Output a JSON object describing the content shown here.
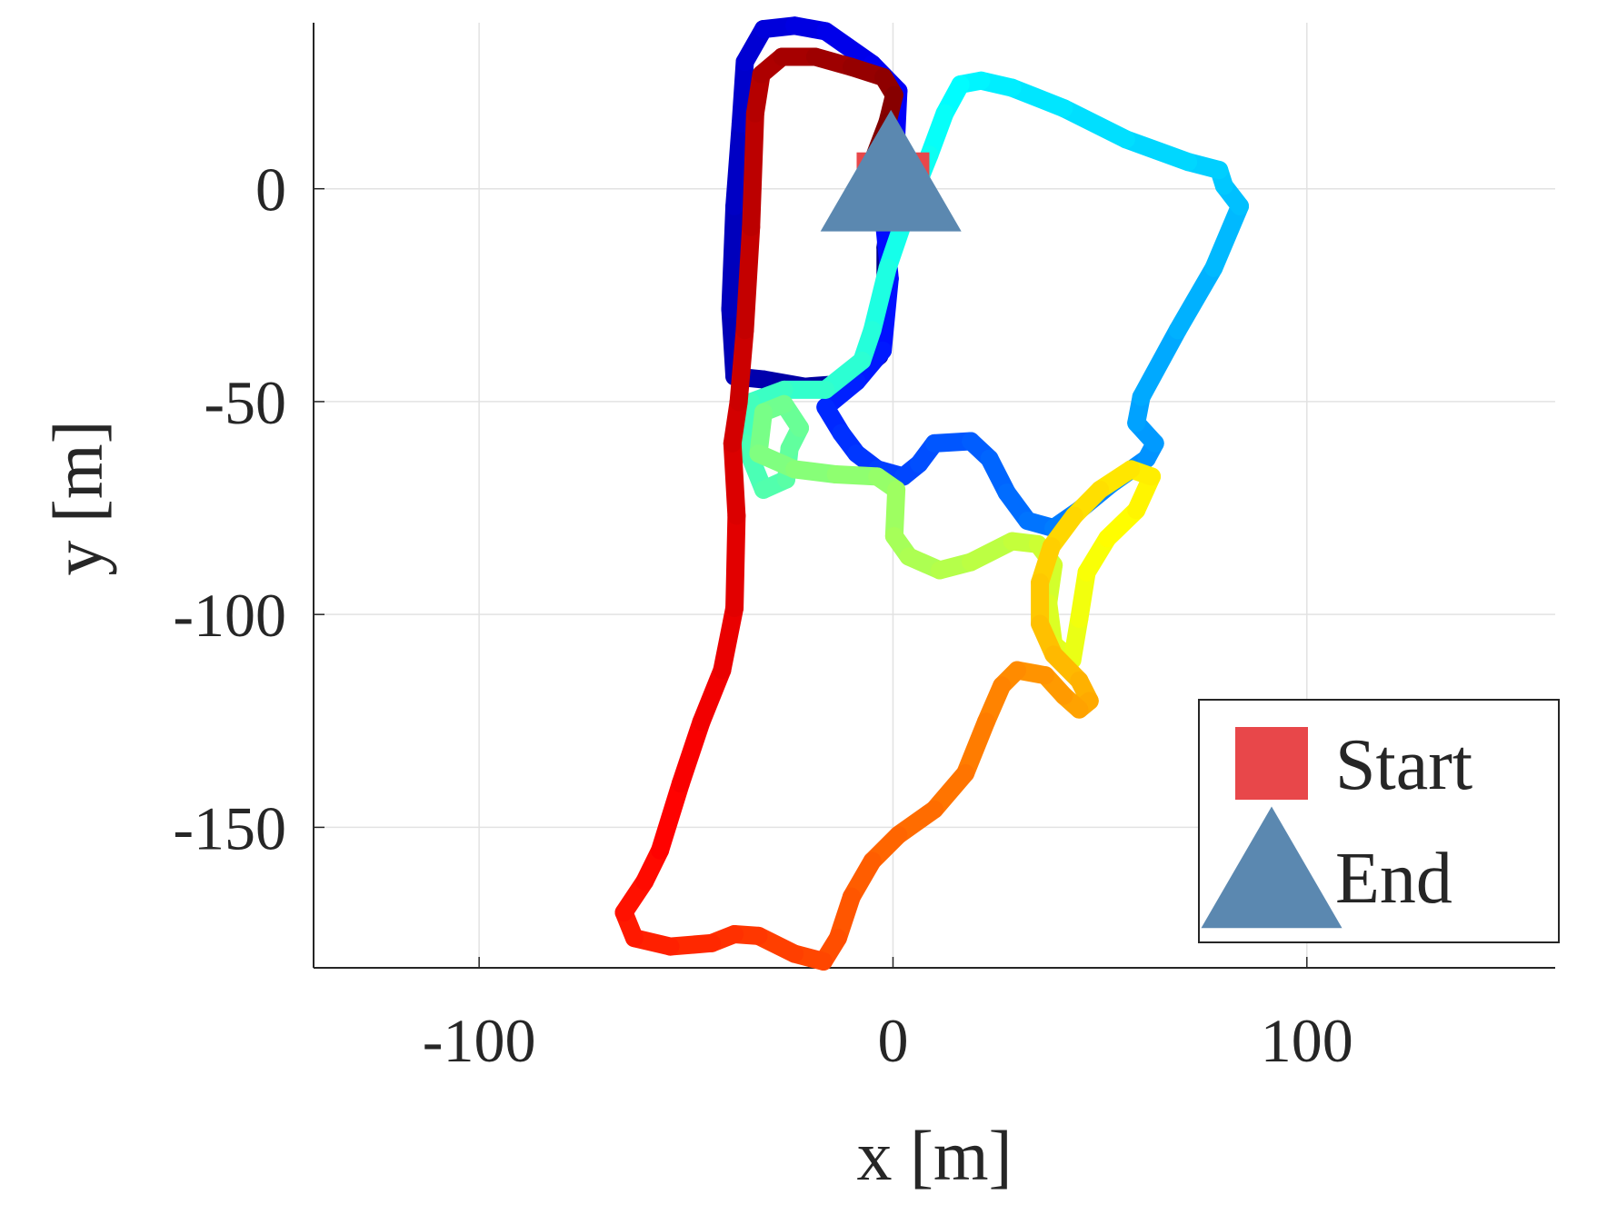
{
  "chart_data": {
    "type": "trajectory",
    "xlabel": "x [m]",
    "ylabel": "y [m]",
    "xlim": [
      -140,
      160
    ],
    "ylim": [
      -183,
      39
    ],
    "xticks": [
      -100,
      0,
      100
    ],
    "yticks": [
      -150,
      -100,
      -50,
      0
    ],
    "grid": true,
    "colormap": "jet",
    "legend_loc": "lower right",
    "x": [
      0,
      -1.8,
      -1.8,
      -3.3,
      -11.3,
      -21.3,
      -31.3,
      -38.3,
      -39.3,
      -38.3,
      -36.8,
      -35.8,
      -31.3,
      -23.8,
      -16.3,
      -5,
      1.3,
      0.8,
      -2.5,
      -0.8,
      -2.5,
      -8.8,
      -16.3,
      -12.5,
      -8.8,
      -3.8,
      2.5,
      6.3,
      10,
      18.8,
      23.3,
      27.5,
      32.5,
      38.8,
      45,
      52.5,
      61.3,
      63.3,
      58.8,
      60,
      68.8,
      77.5,
      83.8,
      80,
      78.8,
      71.3,
      56.3,
      41.3,
      28.8,
      21.3,
      16.3,
      12.5,
      8.8,
      3.8,
      -1.3,
      -5,
      -7.5,
      -16.3,
      -26.3,
      -34.3,
      -35.8,
      -31.3,
      -25.8,
      -25,
      -22.5,
      -26.3,
      -31.3,
      -32.5,
      -23.8,
      -13.8,
      -3.8,
      0.8,
      0.3,
      3.8,
      11.3,
      18.8,
      28.8,
      35,
      38.8,
      37.5,
      38.8,
      43.3,
      45,
      46.8,
      51.8,
      58.8,
      62.5,
      57.5,
      50,
      43.8,
      38.3,
      35.5,
      35.5,
      38.8,
      45,
      47.5,
      45,
      41.3,
      36.8,
      30,
      26.3,
      22.5,
      17.5,
      10,
      1.3,
      -5,
      -10,
      -13.3,
      -16.8,
      -23.8,
      -32.5,
      -38.3,
      -43.8,
      -53.8,
      -62.5,
      -65,
      -60,
      -56.3,
      -51.3,
      -46.3,
      -41.3,
      -38.3,
      -37.8,
      -38.8,
      -37.3,
      -35.8,
      -34.3,
      -33.3,
      -31.8,
      -26.8,
      -18.8,
      -10,
      -2.3,
      0.3,
      -1.3,
      -4.3
    ],
    "y": [
      0,
      -13.8,
      -28.3,
      -39.2,
      -45.8,
      -46.5,
      -44.8,
      -44.1,
      -28.3,
      -4.1,
      15.3,
      29.8,
      37.5,
      38.3,
      37,
      29.3,
      23,
      12.8,
      -4.1,
      -21.1,
      -38,
      -45.3,
      -51.3,
      -57.4,
      -62.2,
      -65.9,
      -67.6,
      -64.6,
      -59.8,
      -59.3,
      -63.4,
      -71.4,
      -78,
      -79.7,
      -75.5,
      -69.5,
      -63.4,
      -59.8,
      -55,
      -48.9,
      -33.2,
      -18.6,
      -4.1,
      0.7,
      4.4,
      6.3,
      11.6,
      18.9,
      23.7,
      25.4,
      24.5,
      17.7,
      8,
      -4.1,
      -18.6,
      -33.2,
      -40.4,
      -47.2,
      -47.2,
      -50.1,
      -59.8,
      -70.7,
      -68.3,
      -61,
      -56.2,
      -50.6,
      -52.5,
      -62.2,
      -65.9,
      -67.1,
      -67.6,
      -70.7,
      -81.6,
      -86.4,
      -89.6,
      -87.7,
      -82.8,
      -83.5,
      -88.4,
      -97.3,
      -107,
      -110.7,
      -101,
      -90.1,
      -82.1,
      -75.5,
      -67.6,
      -65.9,
      -70.7,
      -76.8,
      -84,
      -92.5,
      -102.2,
      -109.4,
      -115.5,
      -120.3,
      -122.3,
      -119.1,
      -114.3,
      -113.1,
      -116.7,
      -125.2,
      -137.3,
      -145.8,
      -151.8,
      -157.9,
      -166.3,
      -176,
      -181.5,
      -179.7,
      -175.5,
      -175.1,
      -177.2,
      -178,
      -176,
      -170,
      -162.7,
      -155.4,
      -139.7,
      -125.2,
      -113.1,
      -98.5,
      -76.8,
      -59.8,
      -50.1,
      -33.2,
      -9,
      17.7,
      26.9,
      31,
      31,
      28.6,
      26.2,
      22,
      15.7,
      8
    ],
    "markers": [
      {
        "name": "Start",
        "x": 0,
        "y": 0,
        "color": "#e8474a",
        "shape": "square"
      },
      {
        "name": "End",
        "x": -0.5,
        "y": 2,
        "color": "#5b88b0",
        "shape": "triangle"
      }
    ]
  }
}
